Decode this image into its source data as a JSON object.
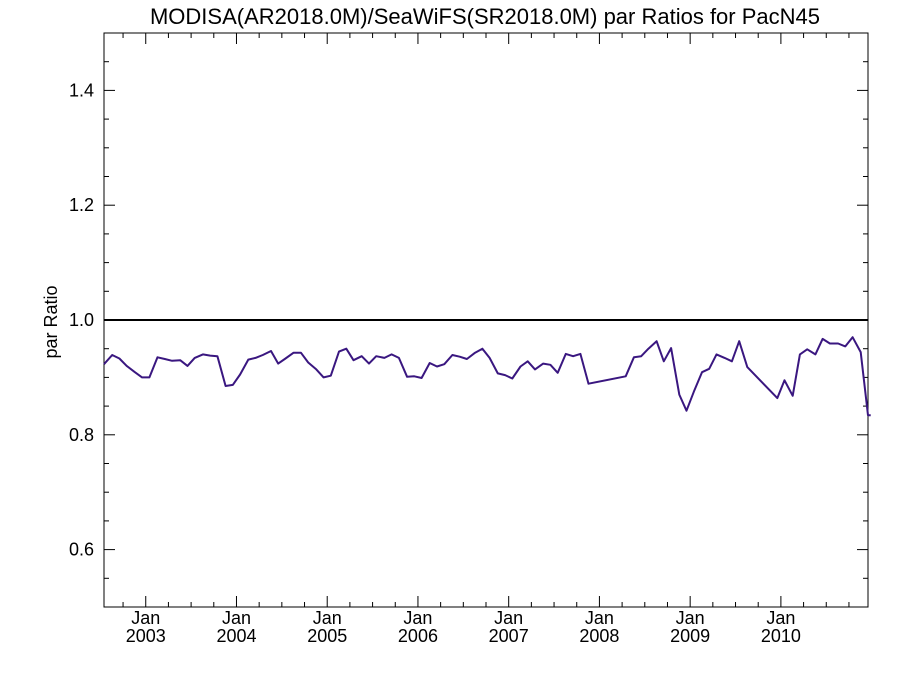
{
  "chart_data": {
    "type": "line",
    "title": "MODISA(AR2018.0M)/SeaWiFS(SR2018.0M)  par Ratios for PacN45",
    "xlabel": "",
    "ylabel": "par Ratio",
    "xlim": [
      2002.54,
      2010.96
    ],
    "ylim": [
      0.5,
      1.5
    ],
    "yticks": [
      0.6,
      0.8,
      1.0,
      1.2,
      1.4
    ],
    "ytick_labels": [
      "0.6",
      "0.8",
      "1.0",
      "1.2",
      "1.4"
    ],
    "xticks": [
      {
        "x": 2003.0,
        "month": "Jan",
        "year": "2003"
      },
      {
        "x": 2004.0,
        "month": "Jan",
        "year": "2004"
      },
      {
        "x": 2005.0,
        "month": "Jan",
        "year": "2005"
      },
      {
        "x": 2006.0,
        "month": "Jan",
        "year": "2006"
      },
      {
        "x": 2007.0,
        "month": "Jan",
        "year": "2007"
      },
      {
        "x": 2008.0,
        "month": "Jan",
        "year": "2008"
      },
      {
        "x": 2009.0,
        "month": "Jan",
        "year": "2009"
      },
      {
        "x": 2010.0,
        "month": "Jan",
        "year": "2010"
      }
    ],
    "reference_line": {
      "y": 1.0,
      "color": "#000000"
    },
    "grid": false,
    "series": [
      {
        "color": "#3a1780",
        "x": [
          2002.54,
          2002.63,
          2002.71,
          2002.79,
          2002.88,
          2002.96,
          2003.04,
          2003.13,
          2003.21,
          2003.29,
          2003.38,
          2003.46,
          2003.54,
          2003.63,
          2003.71,
          2003.79,
          2003.88,
          2003.96,
          2004.04,
          2004.13,
          2004.21,
          2004.29,
          2004.38,
          2004.46,
          2004.54,
          2004.63,
          2004.71,
          2004.79,
          2004.88,
          2004.96,
          2005.04,
          2005.13,
          2005.21,
          2005.29,
          2005.38,
          2005.46,
          2005.54,
          2005.63,
          2005.71,
          2005.79,
          2005.88,
          2005.96,
          2006.04,
          2006.13,
          2006.21,
          2006.29,
          2006.38,
          2006.46,
          2006.54,
          2006.63,
          2006.71,
          2006.79,
          2006.88,
          2006.96,
          2007.04,
          2007.13,
          2007.21,
          2007.29,
          2007.38,
          2007.46,
          2007.54,
          2007.63,
          2007.71,
          2007.79,
          2007.88,
          2008.29,
          2008.38,
          2008.46,
          2008.54,
          2008.63,
          2008.71,
          2008.79,
          2008.88,
          2008.96,
          2009.04,
          2009.13,
          2009.21,
          2009.29,
          2009.38,
          2009.46,
          2009.54,
          2009.63,
          2009.96,
          2010.04,
          2010.13,
          2010.21,
          2010.29,
          2010.38,
          2010.46,
          2010.54,
          2010.63,
          2010.71,
          2010.79,
          2010.88,
          2010.96,
          2010.99
        ],
        "y": [
          0.923,
          0.939,
          0.933,
          0.92,
          0.909,
          0.9,
          0.9,
          0.935,
          0.932,
          0.929,
          0.93,
          0.92,
          0.934,
          0.94,
          0.938,
          0.937,
          0.885,
          0.887,
          0.905,
          0.931,
          0.934,
          0.939,
          0.946,
          0.924,
          0.933,
          0.943,
          0.943,
          0.926,
          0.914,
          0.9,
          0.903,
          0.945,
          0.95,
          0.93,
          0.937,
          0.924,
          0.937,
          0.934,
          0.94,
          0.934,
          0.901,
          0.902,
          0.899,
          0.925,
          0.919,
          0.923,
          0.939,
          0.936,
          0.932,
          0.943,
          0.95,
          0.934,
          0.907,
          0.904,
          0.898,
          0.919,
          0.928,
          0.914,
          0.924,
          0.922,
          0.908,
          0.941,
          0.937,
          0.941,
          0.889,
          0.902,
          0.935,
          0.937,
          0.95,
          0.963,
          0.928,
          0.951,
          0.87,
          0.842,
          0.875,
          0.909,
          0.915,
          0.94,
          0.934,
          0.928,
          0.963,
          0.918,
          0.864,
          0.895,
          0.868,
          0.94,
          0.949,
          0.94,
          0.967,
          0.959,
          0.959,
          0.954,
          0.97,
          0.944,
          0.834,
          0.834
        ]
      }
    ]
  }
}
